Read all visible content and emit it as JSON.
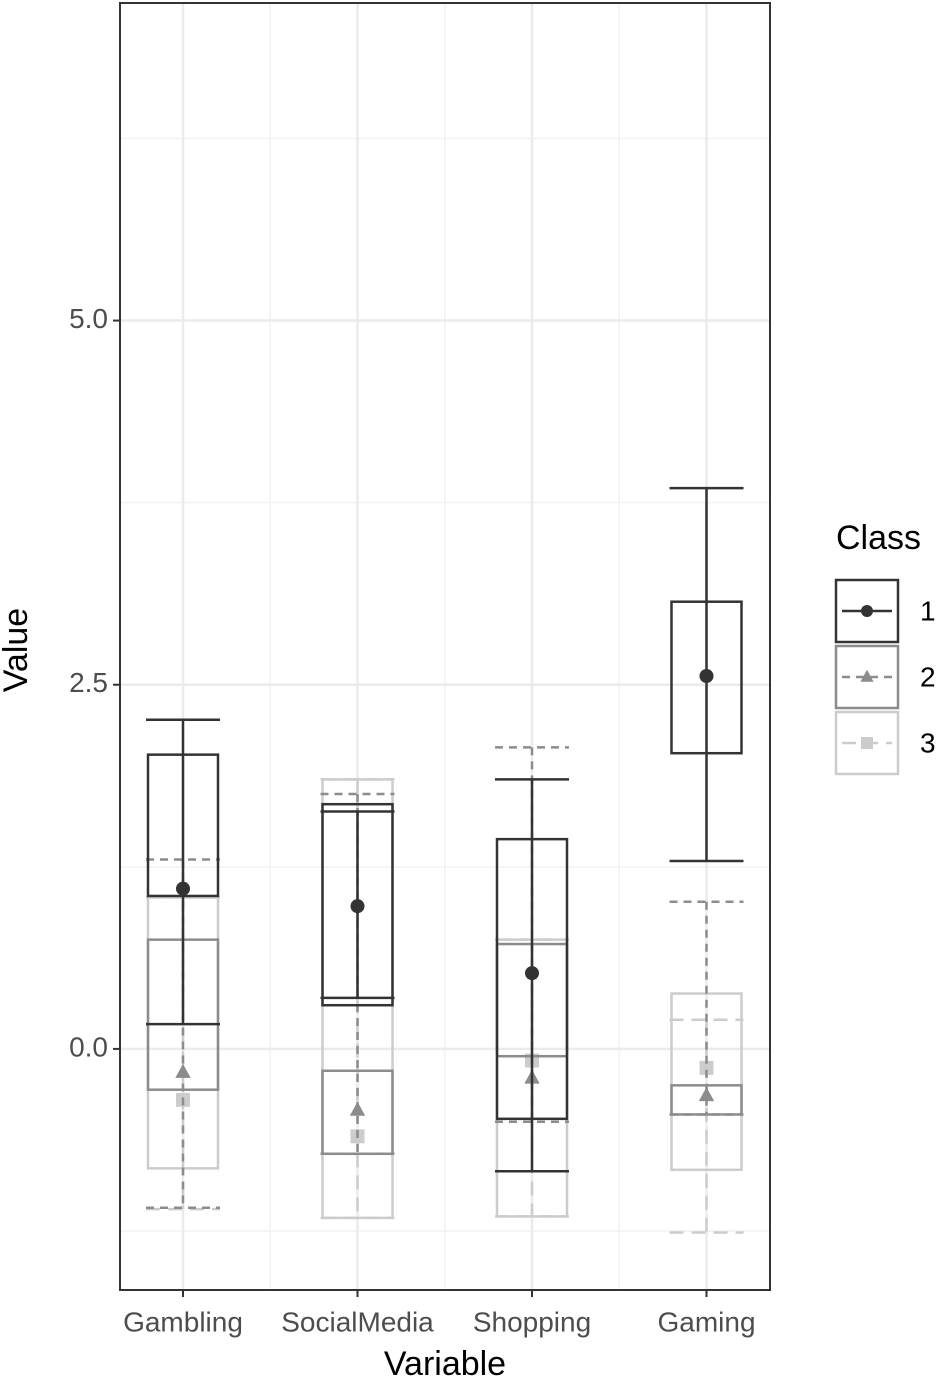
{
  "chart_data": {
    "type": "errorbox",
    "x_label": "Variable",
    "y_label": "Value",
    "legend_title": "Class",
    "categories": [
      "Gambling",
      "SocialMedia",
      "Shopping",
      "Gaming"
    ],
    "series": [
      {
        "name": "1",
        "color": "#333333",
        "linestyle": "solid",
        "marker": "circle",
        "mean": [
          1.1,
          0.98,
          0.52,
          2.56
        ],
        "box_low": [
          1.05,
          0.3,
          -0.48,
          2.03
        ],
        "box_high": [
          2.02,
          1.68,
          1.44,
          3.07
        ],
        "err_low": [
          0.17,
          0.35,
          -0.84,
          1.29
        ],
        "err_high": [
          2.26,
          1.63,
          1.85,
          3.85
        ]
      },
      {
        "name": "2",
        "color": "#8c8c8c",
        "linestyle": "dashed",
        "marker": "triangle",
        "mean": [
          -0.16,
          -0.42,
          -0.2,
          -0.32
        ],
        "box_low": [
          -0.28,
          -0.72,
          -0.05,
          -0.45
        ],
        "box_high": [
          0.75,
          -0.15,
          0.72,
          -0.25
        ],
        "err_low": [
          -1.09,
          -0.72,
          -0.5,
          -0.45
        ],
        "err_high": [
          1.3,
          1.75,
          2.07,
          1.01
        ]
      },
      {
        "name": "3",
        "color": "#cccccc",
        "linestyle": "longdash",
        "marker": "square",
        "mean": [
          -0.35,
          -0.6,
          -0.08,
          -0.13
        ],
        "box_low": [
          -0.82,
          -1.16,
          -1.15,
          -0.83
        ],
        "box_high": [
          1.04,
          1.85,
          0.75,
          0.38
        ],
        "err_low": [
          -1.1,
          -1.16,
          -1.15,
          -1.26
        ],
        "err_high": [
          1.04,
          1.85,
          0.75,
          0.2
        ]
      }
    ],
    "ylim": [
      -1.655,
      7.18
    ],
    "yticks": [
      {
        "value": 0,
        "label": "0.0"
      },
      2.5,
      {
        "value": 5,
        "label": "5.0"
      }
    ],
    "yticks_minor": [
      -1.25,
      1.25,
      3.75,
      6.25
    ],
    "grid": true
  }
}
